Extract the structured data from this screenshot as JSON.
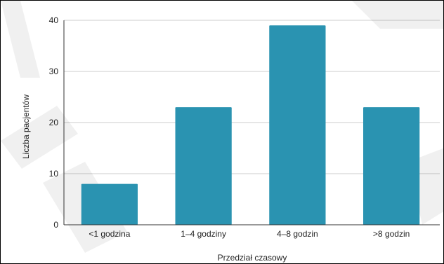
{
  "chart_data": {
    "type": "bar",
    "categories": [
      "<1 godzina",
      "1–4 godziny",
      "4–8 godzin",
      ">8 godzin"
    ],
    "values": [
      8,
      23,
      39,
      23
    ],
    "xlabel": "Przedział czasowy",
    "ylabel": "Liczba pacjentów",
    "ylim": [
      0,
      40
    ],
    "yticks": [
      0,
      10,
      20,
      30,
      40
    ],
    "grid": "horizontal",
    "colors": {
      "bar": "#2a93b1",
      "grid": "#cccccc",
      "axis": "#333333"
    }
  }
}
